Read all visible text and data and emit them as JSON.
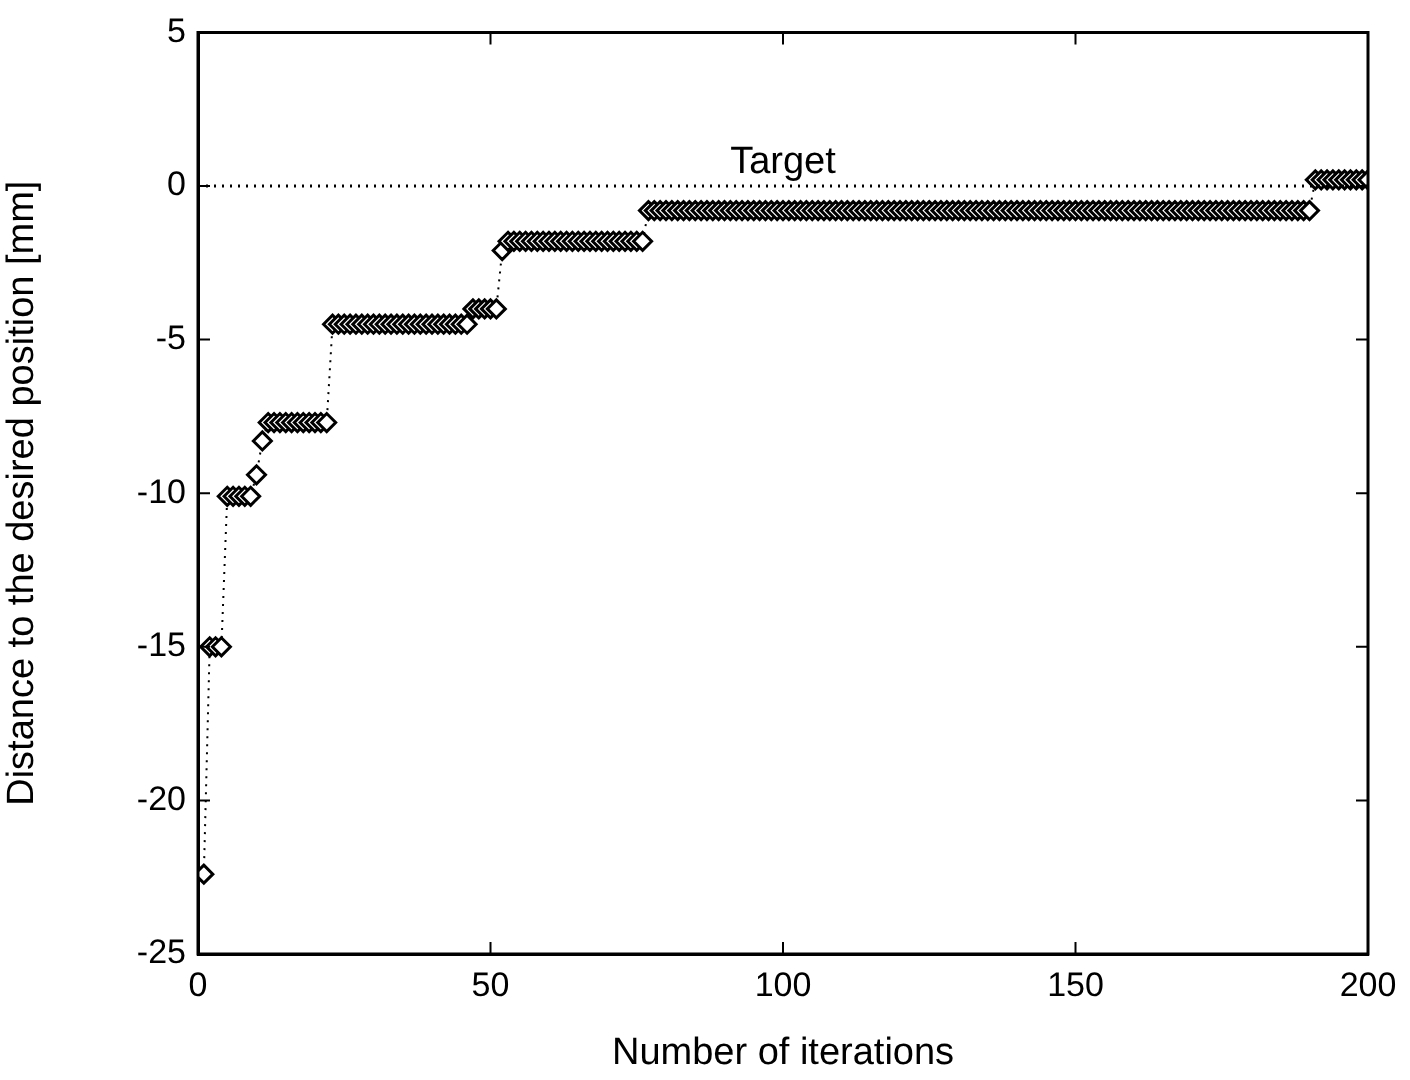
{
  "chart_data": {
    "type": "line",
    "xlabel": "Number of iterations",
    "ylabel": "Distance to the desired position [mm]",
    "xlim": [
      0,
      200
    ],
    "xticks": [
      0,
      50,
      100,
      150,
      200
    ],
    "ylim": [
      -25,
      5
    ],
    "yticks": [
      -25,
      -20,
      -15,
      -10,
      -5,
      0,
      5
    ],
    "grid": false,
    "legend": false,
    "marker": "diamond",
    "line_style": "dotted",
    "ref_lines": [
      {
        "axis": "y",
        "value": 0,
        "label": "Target",
        "color": "#000000",
        "line_style": "dotted"
      }
    ],
    "series": [
      {
        "color": "#000000",
        "x": [
          1,
          2,
          3,
          4,
          5,
          6,
          7,
          8,
          9,
          10,
          11,
          12,
          13,
          14,
          15,
          16,
          17,
          18,
          19,
          20,
          21,
          22,
          23,
          24,
          25,
          26,
          27,
          28,
          29,
          30,
          31,
          32,
          33,
          34,
          35,
          36,
          37,
          38,
          39,
          40,
          41,
          42,
          43,
          44,
          45,
          46,
          47,
          48,
          49,
          50,
          51,
          52,
          53,
          54,
          55,
          56,
          57,
          58,
          59,
          60,
          61,
          62,
          63,
          64,
          65,
          66,
          67,
          68,
          69,
          70,
          71,
          72,
          73,
          74,
          75,
          76,
          77,
          78,
          79,
          80,
          81,
          82,
          83,
          84,
          85,
          86,
          87,
          88,
          89,
          90,
          91,
          92,
          93,
          94,
          95,
          96,
          97,
          98,
          99,
          100,
          101,
          102,
          103,
          104,
          105,
          106,
          107,
          108,
          109,
          110,
          111,
          112,
          113,
          114,
          115,
          116,
          117,
          118,
          119,
          120,
          121,
          122,
          123,
          124,
          125,
          126,
          127,
          128,
          129,
          130,
          131,
          132,
          133,
          134,
          135,
          136,
          137,
          138,
          139,
          140,
          141,
          142,
          143,
          144,
          145,
          146,
          147,
          148,
          149,
          150,
          151,
          152,
          153,
          154,
          155,
          156,
          157,
          158,
          159,
          160,
          161,
          162,
          163,
          164,
          165,
          166,
          167,
          168,
          169,
          170,
          171,
          172,
          173,
          174,
          175,
          176,
          177,
          178,
          179,
          180,
          181,
          182,
          183,
          184,
          185,
          186,
          187,
          188,
          189,
          190,
          191,
          192,
          193,
          194,
          195,
          196,
          197,
          198,
          199,
          200
        ],
        "values": [
          -22.4,
          -15,
          -15,
          -15,
          -10.1,
          -10.1,
          -10.1,
          -10.1,
          -10.1,
          -9.4,
          -8.3,
          -7.7,
          -7.7,
          -7.7,
          -7.7,
          -7.7,
          -7.7,
          -7.7,
          -7.7,
          -7.7,
          -7.7,
          -7.7,
          -4.5,
          -4.5,
          -4.5,
          -4.5,
          -4.5,
          -4.5,
          -4.5,
          -4.5,
          -4.5,
          -4.5,
          -4.5,
          -4.5,
          -4.5,
          -4.5,
          -4.5,
          -4.5,
          -4.5,
          -4.5,
          -4.5,
          -4.5,
          -4.5,
          -4.5,
          -4.5,
          -4.5,
          -4,
          -4,
          -4,
          -4,
          -4,
          -2.1,
          -1.8,
          -1.8,
          -1.8,
          -1.8,
          -1.8,
          -1.8,
          -1.8,
          -1.8,
          -1.8,
          -1.8,
          -1.8,
          -1.8,
          -1.8,
          -1.8,
          -1.8,
          -1.8,
          -1.8,
          -1.8,
          -1.8,
          -1.8,
          -1.8,
          -1.8,
          -1.8,
          -1.8,
          -0.8,
          -0.8,
          -0.8,
          -0.8,
          -0.8,
          -0.8,
          -0.8,
          -0.8,
          -0.8,
          -0.8,
          -0.8,
          -0.8,
          -0.8,
          -0.8,
          -0.8,
          -0.8,
          -0.8,
          -0.8,
          -0.8,
          -0.8,
          -0.8,
          -0.8,
          -0.8,
          -0.8,
          -0.8,
          -0.8,
          -0.8,
          -0.8,
          -0.8,
          -0.8,
          -0.8,
          -0.8,
          -0.8,
          -0.8,
          -0.8,
          -0.8,
          -0.8,
          -0.8,
          -0.8,
          -0.8,
          -0.8,
          -0.8,
          -0.8,
          -0.8,
          -0.8,
          -0.8,
          -0.8,
          -0.8,
          -0.8,
          -0.8,
          -0.8,
          -0.8,
          -0.8,
          -0.8,
          -0.8,
          -0.8,
          -0.8,
          -0.8,
          -0.8,
          -0.8,
          -0.8,
          -0.8,
          -0.8,
          -0.8,
          -0.8,
          -0.8,
          -0.8,
          -0.8,
          -0.8,
          -0.8,
          -0.8,
          -0.8,
          -0.8,
          -0.8,
          -0.8,
          -0.8,
          -0.8,
          -0.8,
          -0.8,
          -0.8,
          -0.8,
          -0.8,
          -0.8,
          -0.8,
          -0.8,
          -0.8,
          -0.8,
          -0.8,
          -0.8,
          -0.8,
          -0.8,
          -0.8,
          -0.8,
          -0.8,
          -0.8,
          -0.8,
          -0.8,
          -0.8,
          -0.8,
          -0.8,
          -0.8,
          -0.8,
          -0.8,
          -0.8,
          -0.8,
          -0.8,
          -0.8,
          -0.8,
          -0.8,
          -0.8,
          -0.8,
          -0.8,
          -0.8,
          -0.8,
          0.2,
          0.2,
          0.2,
          0.2,
          0.2,
          0.2,
          0.2,
          0.2,
          0.2,
          0.2
        ]
      }
    ]
  }
}
